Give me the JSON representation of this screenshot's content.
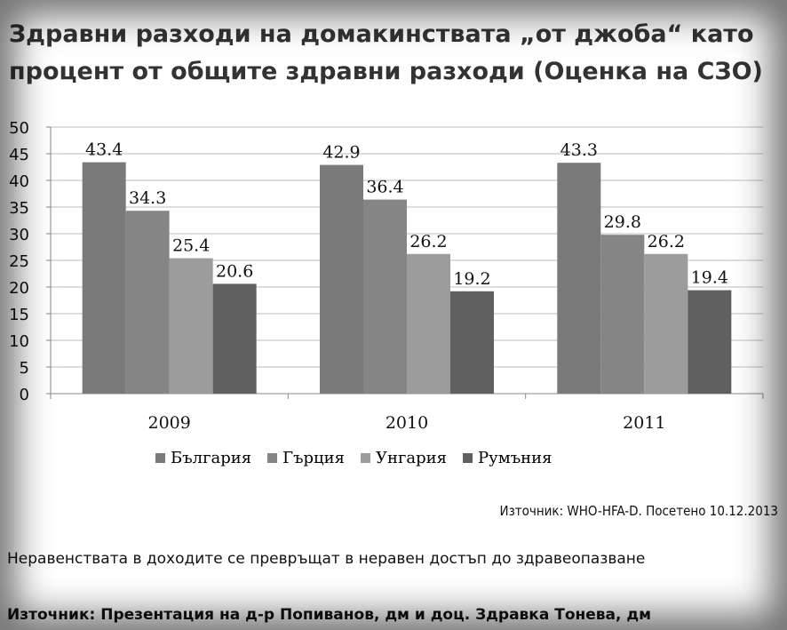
{
  "title": "Здравни разходи на домакинствата „от джоба“ като процент от общите здравни разходи (Оценка на СЗО)",
  "source_who": "Източник: WHO-HFA-D. Посетено 10.12.2013",
  "note": "Неравенствата в доходите се превръщат в неравен достъп до здравеопазване",
  "source_bottom": "Източник: Презентация на д-р Попиванов, дм и доц. Здравка Тонева, дм",
  "chart_data": {
    "type": "bar",
    "title": "",
    "xlabel": "",
    "ylabel": "",
    "ylim": [
      0,
      50
    ],
    "yticks": [
      0,
      5,
      10,
      15,
      20,
      25,
      30,
      35,
      40,
      45,
      50
    ],
    "grid": true,
    "legend_position": "bottom",
    "categories": [
      "2009",
      "2010",
      "2011"
    ],
    "series": [
      {
        "name": "България",
        "values": [
          43.4,
          42.9,
          43.3
        ],
        "color": "#7a7a7a"
      },
      {
        "name": "Гърция",
        "values": [
          34.3,
          36.4,
          29.8
        ],
        "color": "#858585"
      },
      {
        "name": "Унгария",
        "values": [
          25.4,
          26.2,
          26.2
        ],
        "color": "#9c9c9c"
      },
      {
        "name": "Румъния",
        "values": [
          20.6,
          19.2,
          19.4
        ],
        "color": "#606060"
      }
    ]
  }
}
